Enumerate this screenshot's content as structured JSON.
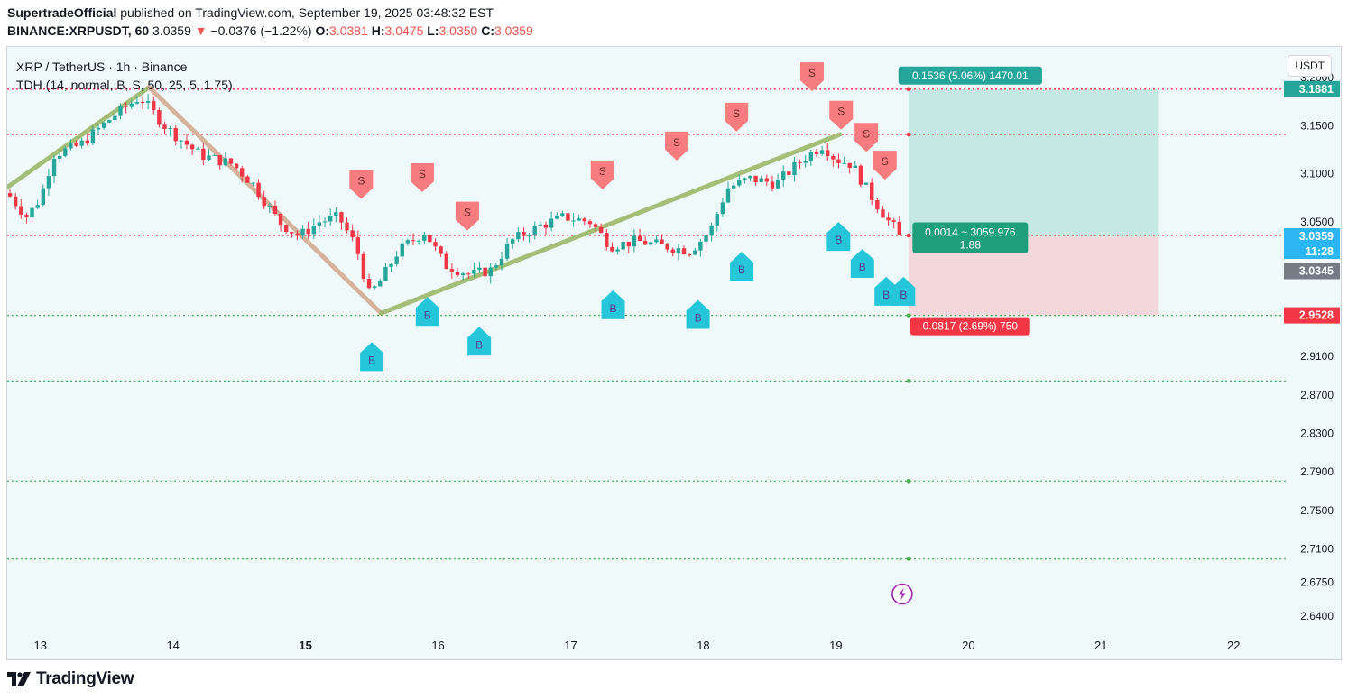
{
  "header": {
    "publisher": "SupertradeOfficial",
    "published_text": "published on TradingView.com, September 19, 2025 03:48:32 EST",
    "symbol": "BINANCE:XRPUSDT, 60",
    "last": "3.0359",
    "arrow": "▼",
    "change": "−0.0376 (−1.22%)",
    "o_label": "O:",
    "o_value": "3.0381",
    "h_label": "H:",
    "h_value": "3.0475",
    "l_label": "L:",
    "l_value": "3.0350",
    "c_label": "C:",
    "c_value": "3.0359"
  },
  "legend": {
    "title": "XRP / TetherUS · 1h · Binance",
    "indicator": "TDH (14, normal, B, S, 50, 25, 5, 1.75)"
  },
  "currency_button": "USDT",
  "footer": {
    "brand": "TradingView",
    "logo_icon": "tradingview-logo-icon"
  },
  "colors": {
    "up": "#26a69a",
    "down": "#f23645",
    "buy_marker": "#26c6da",
    "sell_marker": "#f77c80",
    "trend_up": "#9bb86a",
    "trend_down": "#d3ab92",
    "target_zone": "#c6e8e3",
    "stop_zone": "#f4d7da",
    "price_tag": "#2bb5f2",
    "gray_tag": "#787b86"
  },
  "chart_data": {
    "type": "candlestick",
    "title": "XRP / TetherUS · 1h · Binance",
    "y_axis": {
      "range": [
        2.625,
        3.232
      ],
      "ticks": [
        "3.2000",
        "3.1500",
        "3.1000",
        "3.0500",
        "2.9100",
        "2.8700",
        "2.8300",
        "2.7900",
        "2.7500",
        "2.7100",
        "2.6750",
        "2.6400"
      ]
    },
    "x_axis": {
      "range": [
        12.75,
        22.4
      ],
      "ticks": [
        {
          "label": "13",
          "x": 13
        },
        {
          "label": "14",
          "x": 14
        },
        {
          "label": "15",
          "x": 15,
          "bold": true
        },
        {
          "label": "16",
          "x": 16
        },
        {
          "label": "17",
          "x": 17
        },
        {
          "label": "18",
          "x": 18
        },
        {
          "label": "19",
          "x": 19
        },
        {
          "label": "20",
          "x": 20
        },
        {
          "label": "21",
          "x": 21
        },
        {
          "label": "22",
          "x": 22
        }
      ]
    },
    "series": [
      {
        "name": "XRPUSDT 1h",
        "anchors": [
          {
            "x": 12.75,
            "y": 3.08
          },
          {
            "x": 12.9,
            "y": 3.055
          },
          {
            "x": 13.0,
            "y": 3.075
          },
          {
            "x": 13.1,
            "y": 3.12
          },
          {
            "x": 13.3,
            "y": 3.13
          },
          {
            "x": 13.55,
            "y": 3.16
          },
          {
            "x": 13.75,
            "y": 3.18
          },
          {
            "x": 13.95,
            "y": 3.148
          },
          {
            "x": 14.2,
            "y": 3.12
          },
          {
            "x": 14.45,
            "y": 3.11
          },
          {
            "x": 14.6,
            "y": 3.09
          },
          {
            "x": 14.8,
            "y": 3.05
          },
          {
            "x": 14.95,
            "y": 3.035
          },
          {
            "x": 15.1,
            "y": 3.05
          },
          {
            "x": 15.25,
            "y": 3.055
          },
          {
            "x": 15.38,
            "y": 3.025
          },
          {
            "x": 15.48,
            "y": 2.975
          },
          {
            "x": 15.55,
            "y": 2.985
          },
          {
            "x": 15.7,
            "y": 3.02
          },
          {
            "x": 15.8,
            "y": 3.03
          },
          {
            "x": 15.9,
            "y": 3.04
          },
          {
            "x": 16.05,
            "y": 3.005
          },
          {
            "x": 16.25,
            "y": 2.995
          },
          {
            "x": 16.4,
            "y": 3.0
          },
          {
            "x": 16.55,
            "y": 3.03
          },
          {
            "x": 16.75,
            "y": 3.045
          },
          {
            "x": 16.95,
            "y": 3.055
          },
          {
            "x": 17.15,
            "y": 3.05
          },
          {
            "x": 17.3,
            "y": 3.025
          },
          {
            "x": 17.5,
            "y": 3.03
          },
          {
            "x": 17.7,
            "y": 3.025
          },
          {
            "x": 17.9,
            "y": 3.02
          },
          {
            "x": 18.05,
            "y": 3.04
          },
          {
            "x": 18.18,
            "y": 3.085
          },
          {
            "x": 18.35,
            "y": 3.095
          },
          {
            "x": 18.55,
            "y": 3.09
          },
          {
            "x": 18.75,
            "y": 3.115
          },
          {
            "x": 18.9,
            "y": 3.13
          },
          {
            "x": 19.0,
            "y": 3.115
          },
          {
            "x": 19.12,
            "y": 3.11
          },
          {
            "x": 19.25,
            "y": 3.08
          },
          {
            "x": 19.4,
            "y": 3.05
          },
          {
            "x": 19.5,
            "y": 3.0359
          }
        ],
        "last_close": 3.0359
      }
    ],
    "buy_markers": [
      {
        "label": "B",
        "x": 15.5,
        "y": 2.908
      },
      {
        "label": "B",
        "x": 15.92,
        "y": 2.955
      },
      {
        "label": "B",
        "x": 16.31,
        "y": 2.924
      },
      {
        "label": "B",
        "x": 17.32,
        "y": 2.962
      },
      {
        "label": "B",
        "x": 17.96,
        "y": 2.952
      },
      {
        "label": "B",
        "x": 18.29,
        "y": 3.002
      },
      {
        "label": "B",
        "x": 19.02,
        "y": 3.033
      },
      {
        "label": "B",
        "x": 19.2,
        "y": 3.005
      },
      {
        "label": "B",
        "x": 19.38,
        "y": 2.976
      },
      {
        "label": "B",
        "x": 19.51,
        "y": 2.976
      }
    ],
    "sell_markers": [
      {
        "label": "S",
        "x": 15.42,
        "y": 3.088
      },
      {
        "label": "S",
        "x": 15.88,
        "y": 3.095
      },
      {
        "label": "S",
        "x": 16.22,
        "y": 3.055
      },
      {
        "label": "S",
        "x": 17.24,
        "y": 3.098
      },
      {
        "label": "S",
        "x": 17.8,
        "y": 3.128
      },
      {
        "label": "S",
        "x": 18.25,
        "y": 3.158
      },
      {
        "label": "S",
        "x": 18.82,
        "y": 3.2
      },
      {
        "label": "S",
        "x": 19.04,
        "y": 3.16
      },
      {
        "label": "S",
        "x": 19.23,
        "y": 3.137
      },
      {
        "label": "S",
        "x": 19.37,
        "y": 3.108
      }
    ],
    "trend_lines": [
      {
        "x1": 12.75,
        "y1": 3.086,
        "x2": 13.82,
        "y2": 3.19,
        "color": "trend_up"
      },
      {
        "x1": 13.82,
        "y1": 3.19,
        "x2": 15.57,
        "y2": 2.955,
        "color": "trend_down"
      },
      {
        "x1": 15.57,
        "y1": 2.955,
        "x2": 19.03,
        "y2": 3.141,
        "color": "trend_up"
      }
    ],
    "horizontal_levels": [
      {
        "y": 3.1881,
        "style": "dotted",
        "color": "#f23645"
      },
      {
        "y": 3.141,
        "style": "dotted",
        "color": "#f23645"
      },
      {
        "y": 3.0359,
        "style": "dotted",
        "color": "#f23645"
      },
      {
        "y": 2.9528,
        "style": "dotted",
        "color": "#4caf50"
      },
      {
        "y": 2.8845,
        "style": "dotted",
        "color": "#4caf50"
      },
      {
        "y": 2.7805,
        "style": "dotted",
        "color": "#4caf50"
      },
      {
        "y": 2.6995,
        "style": "dotted",
        "color": "#4caf50"
      }
    ],
    "position": {
      "type": "long",
      "x_start": 19.55,
      "x_end": 21.43,
      "entry": 3.0345,
      "target": 3.1881,
      "stop": 2.9528,
      "target_label": "0.1536 (5.06%) 1470.01",
      "entry_label_1": "0.0014 ~ 3059.976",
      "entry_label_2": "1.88",
      "stop_label": "0.0817 (2.69%) 750"
    },
    "price_tags": [
      {
        "value": "3.1881",
        "y": 3.1881,
        "color": "up"
      },
      {
        "value": "3.0359",
        "y": 3.0359,
        "color": "price_tag"
      },
      {
        "value": "11:28",
        "y": 3.0359,
        "color": "price_tag"
      },
      {
        "value": "3.0345",
        "y": 3.0345,
        "color": "gray_tag"
      },
      {
        "value": "2.9528",
        "y": 2.9528,
        "color": "down"
      }
    ],
    "annotations": [
      {
        "type": "lightning-icon",
        "x": 19.5,
        "y": 2.663
      }
    ]
  }
}
